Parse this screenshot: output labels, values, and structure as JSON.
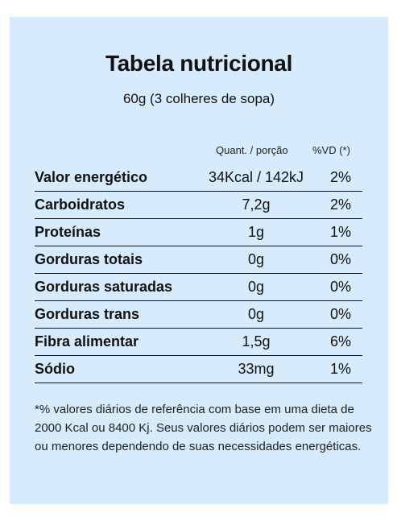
{
  "title": "Tabela nutricional",
  "subtitle": "60g (3 colheres de sopa)",
  "columns": {
    "quantity": "Quant. / porção",
    "vd": "%VD (*)"
  },
  "rows": [
    {
      "name": "Valor energético",
      "qty": "34Kcal / 142kJ",
      "vd": "2%"
    },
    {
      "name": "Carboidratos",
      "qty": "7,2g",
      "vd": "2%"
    },
    {
      "name": "Proteínas",
      "qty": "1g",
      "vd": "1%"
    },
    {
      "name": "Gorduras totais",
      "qty": "0g",
      "vd": "0%"
    },
    {
      "name": "Gorduras saturadas",
      "qty": "0g",
      "vd": "0%"
    },
    {
      "name": "Gorduras trans",
      "qty": "0g",
      "vd": "0%"
    },
    {
      "name": "Fibra alimentar",
      "qty": "1,5g",
      "vd": "6%"
    },
    {
      "name": "Sódio",
      "qty": "33mg",
      "vd": "1%"
    }
  ],
  "footnote": "*% valores diários de referência com base em uma dieta de 2000 Kcal ou 8400 Kj. Seus valores diários podem ser maiores ou menores dependendo de suas necessidades energéticas.",
  "colors": {
    "background": "#d6ebfb",
    "text": "#111111"
  }
}
